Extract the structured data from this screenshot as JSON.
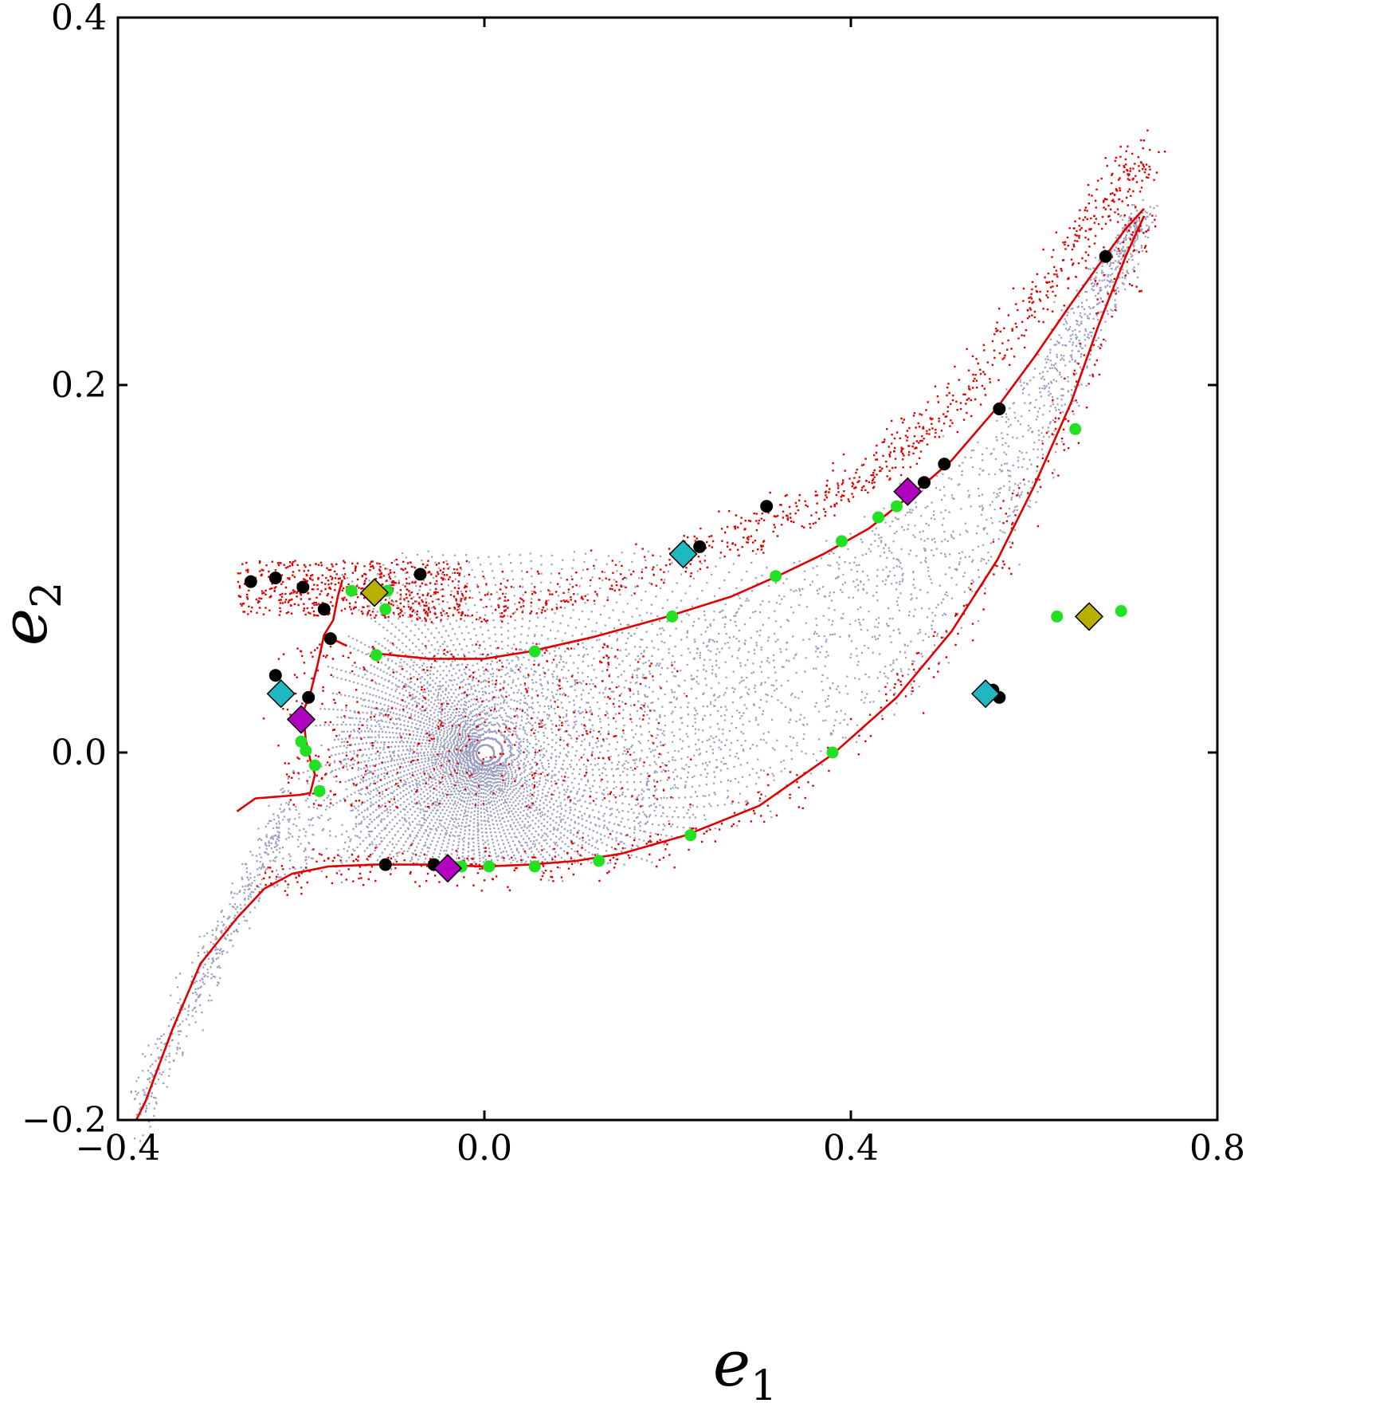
{
  "chart_data": {
    "type": "scatter",
    "title": "",
    "xlabel": "e",
    "xlabel_sub": "1",
    "ylabel": "e",
    "ylabel_sub": "2",
    "xlim": [
      -0.4,
      0.8
    ],
    "ylim": [
      -0.2,
      0.4
    ],
    "xticks": [
      -0.4,
      0.0,
      0.4,
      0.8
    ],
    "xtick_labels": [
      "−0.4",
      "0.0",
      "0.4",
      "0.8"
    ],
    "yticks": [
      -0.2,
      0.0,
      0.2,
      0.4
    ],
    "ytick_labels": [
      "−0.2",
      "0.0",
      "0.2",
      "0.4"
    ],
    "grid": false,
    "colors": {
      "cloud": "#9a9cc0",
      "red_curve": "#e00000",
      "black": "#000000",
      "green": "#22e022",
      "cyan": "#20b8c0",
      "magenta": "#b000c0",
      "olive": "#b8b000"
    },
    "red_curves": [
      [
        [
          -0.24,
          -0.074
        ],
        [
          -0.21,
          -0.066
        ],
        [
          -0.17,
          -0.062
        ],
        [
          -0.12,
          -0.061
        ],
        [
          -0.06,
          -0.061
        ],
        [
          0.0,
          -0.062
        ],
        [
          0.05,
          -0.061
        ],
        [
          0.1,
          -0.059
        ],
        [
          0.15,
          -0.055
        ],
        [
          0.22,
          -0.045
        ],
        [
          0.3,
          -0.029
        ],
        [
          0.38,
          -0.001
        ],
        [
          0.45,
          0.03
        ],
        [
          0.51,
          0.066
        ],
        [
          0.56,
          0.105
        ],
        [
          0.6,
          0.145
        ],
        [
          0.64,
          0.19
        ],
        [
          0.67,
          0.232
        ],
        [
          0.7,
          0.27
        ],
        [
          0.72,
          0.292
        ]
      ],
      [
        [
          -0.12,
          0.054
        ],
        [
          -0.06,
          0.051
        ],
        [
          0.0,
          0.051
        ],
        [
          0.05,
          0.055
        ],
        [
          0.12,
          0.063
        ],
        [
          0.2,
          0.074
        ],
        [
          0.27,
          0.085
        ],
        [
          0.32,
          0.096
        ],
        [
          0.37,
          0.108
        ],
        [
          0.42,
          0.122
        ],
        [
          0.45,
          0.134
        ],
        [
          0.48,
          0.146
        ],
        [
          0.51,
          0.159
        ],
        [
          0.56,
          0.188
        ],
        [
          0.6,
          0.215
        ],
        [
          0.64,
          0.244
        ],
        [
          0.67,
          0.265
        ],
        [
          0.7,
          0.285
        ],
        [
          0.72,
          0.296
        ]
      ],
      [
        [
          -0.15,
          0.058
        ],
        [
          -0.175,
          0.064
        ],
        [
          -0.182,
          0.048
        ],
        [
          -0.19,
          0.032
        ],
        [
          -0.198,
          0.022
        ],
        [
          -0.195,
          0.007
        ],
        [
          -0.19,
          -0.004
        ],
        [
          -0.185,
          -0.012
        ],
        [
          -0.19,
          -0.022
        ],
        [
          -0.2,
          -0.023
        ],
        [
          -0.25,
          -0.025
        ],
        [
          -0.27,
          -0.032
        ]
      ],
      [
        [
          -0.175,
          0.064
        ],
        [
          -0.165,
          0.072
        ],
        [
          -0.16,
          0.085
        ],
        [
          -0.155,
          0.094
        ]
      ],
      [
        [
          -0.24,
          -0.074
        ],
        [
          -0.27,
          -0.09
        ],
        [
          -0.31,
          -0.115
        ],
        [
          -0.34,
          -0.15
        ],
        [
          -0.37,
          -0.19
        ],
        [
          -0.38,
          -0.2
        ]
      ]
    ],
    "series": [
      {
        "name": "black",
        "marker": "circle",
        "x": [
          -0.255,
          -0.228,
          -0.198,
          -0.175,
          -0.168,
          -0.228,
          -0.192,
          -0.07,
          -0.108,
          -0.055,
          0.235,
          0.308,
          0.48,
          0.502,
          0.562,
          0.678,
          0.555,
          0.562
        ],
        "y": [
          0.093,
          0.095,
          0.09,
          0.078,
          0.062,
          0.042,
          0.03,
          0.097,
          -0.061,
          -0.061,
          0.112,
          0.134,
          0.147,
          0.157,
          0.187,
          0.27,
          0.034,
          0.03
        ]
      },
      {
        "name": "green",
        "marker": "circle",
        "x": [
          -0.145,
          -0.118,
          -0.108,
          -0.106,
          -0.2,
          -0.195,
          -0.185,
          -0.18,
          -0.025,
          0.005,
          0.055,
          0.125,
          0.225,
          0.205,
          0.055,
          0.318,
          0.39,
          0.43,
          0.45,
          0.38,
          0.625,
          0.695,
          0.645
        ],
        "y": [
          0.088,
          0.053,
          0.078,
          0.088,
          0.006,
          0.001,
          -0.007,
          -0.021,
          -0.062,
          -0.062,
          -0.062,
          -0.059,
          -0.045,
          0.074,
          0.055,
          0.096,
          0.115,
          0.128,
          0.134,
          0.0,
          0.074,
          0.077,
          0.176
        ]
      },
      {
        "name": "cyan",
        "marker": "diamond",
        "x": [
          -0.222,
          0.217,
          0.547
        ],
        "y": [
          0.032,
          0.108,
          0.032
        ]
      },
      {
        "name": "magenta",
        "marker": "diamond",
        "x": [
          -0.2,
          -0.04,
          0.462
        ],
        "y": [
          0.018,
          -0.063,
          0.142
        ]
      },
      {
        "name": "olive",
        "marker": "diamond",
        "x": [
          -0.12,
          0.66
        ],
        "y": [
          0.087,
          0.074
        ]
      }
    ]
  }
}
